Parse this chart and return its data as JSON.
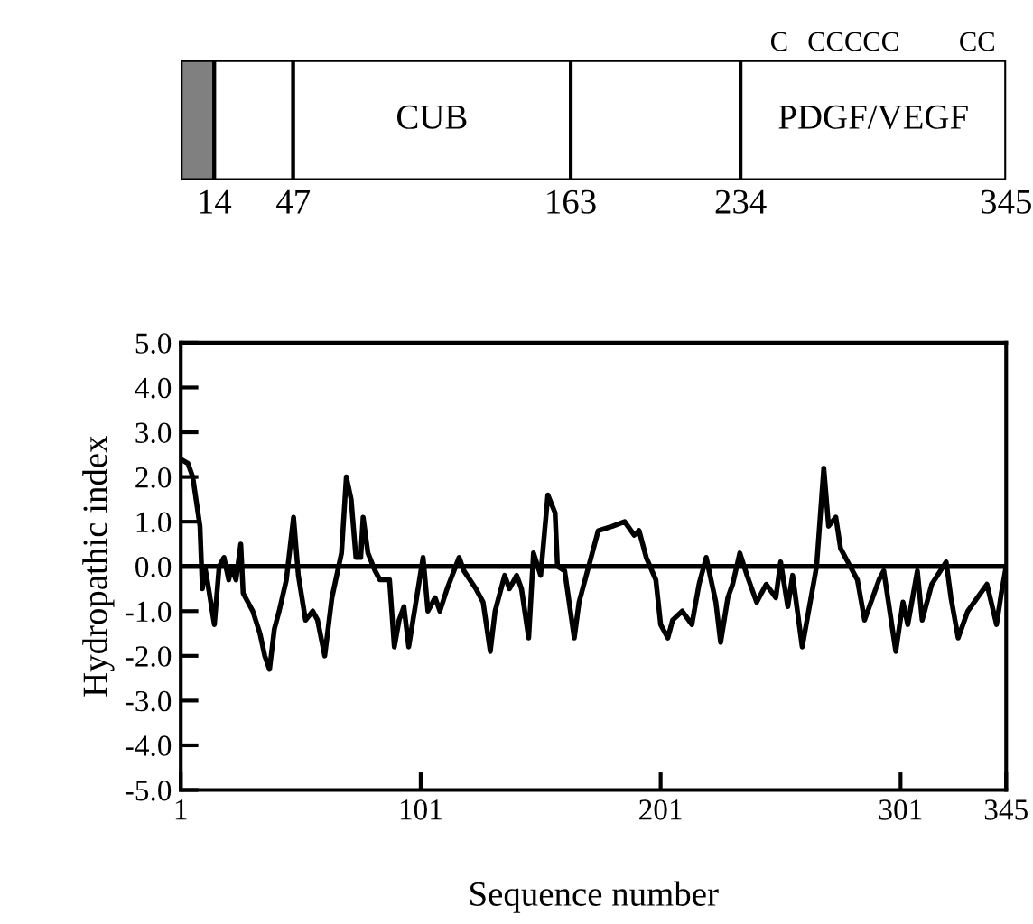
{
  "chart_data": [
    {
      "type": "bar",
      "orientation": "horizontal",
      "stacked": true,
      "categories": [
        null
      ],
      "xlim": [
        0,
        345
      ],
      "xticks": [
        14,
        47,
        163,
        234,
        345
      ],
      "tick_labels": "x",
      "series": [
        {
          "color": "#808080",
          "values": [
            14
          ]
        },
        {
          "color": "#ffffff",
          "values": [
            33
          ]
        },
        {
          "color": "#ffffff",
          "values": [
            116
          ],
          "value_labels": [
            "CUB"
          ]
        },
        {
          "color": "#ffffff",
          "values": [
            71
          ]
        },
        {
          "color": "#ffffff",
          "values": [
            111
          ],
          "value_labels": [
            "PDGF/VEGF"
          ]
        }
      ],
      "annotations": [
        "C",
        "CCCCC",
        "CC"
      ]
    },
    {
      "type": "line",
      "xlabel": "Sequence number",
      "ylabel": "Hydropathic index",
      "xlim": [
        1,
        345
      ],
      "ylim": [
        -5,
        5
      ],
      "xticks": [
        1,
        101,
        201,
        301,
        345
      ],
      "yticks": [
        {
          "value": -5,
          "label": "-5.0"
        },
        {
          "value": -4,
          "label": "-4.0"
        },
        {
          "value": -3,
          "label": "-3.0"
        },
        {
          "value": -2,
          "label": "-2.0"
        },
        {
          "value": -1,
          "label": "-1.0"
        },
        {
          "value": 0,
          "label": "0.0"
        },
        {
          "value": 1,
          "label": "1.0"
        },
        {
          "value": 2,
          "label": "2.0"
        },
        {
          "value": 3,
          "label": "3.0"
        },
        {
          "value": 4,
          "label": "4.0"
        },
        {
          "value": 5,
          "label": "5.0"
        }
      ],
      "ref_lines": [
        {
          "axis": "y",
          "value": 0,
          "color": "#000000"
        }
      ],
      "series": [
        {
          "color": "#000000",
          "x": [
            1,
            4,
            6,
            9,
            10,
            11,
            12,
            15,
            17,
            19,
            21,
            22,
            24,
            26,
            27,
            31,
            34,
            36,
            38,
            40,
            42,
            45,
            48,
            50,
            53,
            56,
            58,
            61,
            64,
            68,
            70,
            72,
            74,
            76,
            77,
            79,
            82,
            84,
            88,
            90,
            92,
            94,
            96,
            99,
            102,
            104,
            107,
            109,
            112,
            117,
            119,
            124,
            127,
            130,
            132,
            136,
            138,
            141,
            143,
            146,
            148,
            151,
            154,
            157,
            158,
            161,
            165,
            167,
            171,
            175,
            181,
            186,
            190,
            192,
            195,
            199,
            201,
            204,
            206,
            210,
            214,
            217,
            220,
            224,
            226,
            229,
            231,
            234,
            237,
            241,
            245,
            249,
            251,
            254,
            256,
            260,
            264,
            266,
            269,
            271,
            274,
            276,
            279,
            283,
            286,
            292,
            294,
            299,
            302,
            304,
            308,
            310,
            314,
            320,
            322,
            325,
            329,
            333,
            337,
            341,
            343,
            345
          ],
          "values": [
            2.4,
            2.3,
            2.0,
            0.9,
            -0.5,
            0.0,
            -0.3,
            -1.3,
            0.0,
            0.2,
            -0.3,
            0.0,
            -0.3,
            0.5,
            -0.6,
            -1.0,
            -1.5,
            -2.0,
            -2.3,
            -1.4,
            -1.0,
            -0.3,
            1.1,
            -0.2,
            -1.2,
            -1.0,
            -1.2,
            -2.0,
            -0.7,
            0.3,
            2.0,
            1.5,
            0.2,
            0.2,
            1.1,
            0.3,
            -0.1,
            -0.3,
            -0.3,
            -1.8,
            -1.2,
            -0.9,
            -1.8,
            -0.8,
            0.2,
            -1.0,
            -0.7,
            -1.0,
            -0.5,
            0.2,
            -0.1,
            -0.5,
            -0.8,
            -1.9,
            -1.0,
            -0.2,
            -0.5,
            -0.2,
            -0.5,
            -1.6,
            0.3,
            -0.2,
            1.6,
            1.2,
            0.0,
            -0.1,
            -1.6,
            -0.8,
            0.0,
            0.8,
            0.9,
            1.0,
            0.7,
            0.8,
            0.2,
            -0.3,
            -1.3,
            -1.6,
            -1.2,
            -1.0,
            -1.3,
            -0.4,
            0.2,
            -0.8,
            -1.7,
            -0.7,
            -0.4,
            0.3,
            -0.2,
            -0.8,
            -0.4,
            -0.7,
            0.1,
            -0.9,
            -0.2,
            -1.8,
            -0.6,
            0.0,
            2.2,
            0.9,
            1.1,
            0.4,
            0.1,
            -0.3,
            -1.2,
            -0.3,
            -0.1,
            -1.9,
            -0.8,
            -1.3,
            -0.1,
            -1.2,
            -0.4,
            0.1,
            -0.7,
            -1.6,
            -1.0,
            -0.7,
            -0.4,
            -1.3,
            -0.6,
            0.0
          ]
        }
      ]
    }
  ]
}
